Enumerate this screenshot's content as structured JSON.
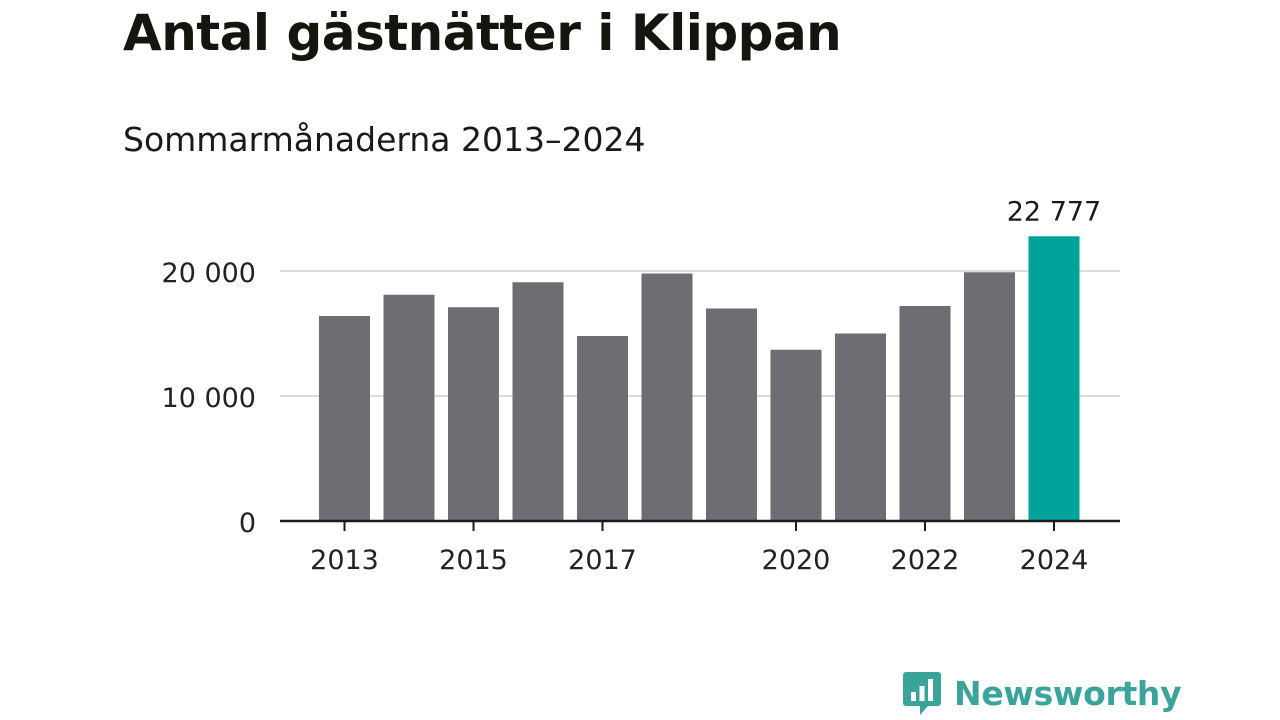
{
  "chart_data": {
    "type": "bar",
    "title": "Antal gästnätter i Klippan",
    "subtitle": "Sommarmånaderna 2013–2024",
    "categories": [
      "2013",
      "2014",
      "2015",
      "2016",
      "2017",
      "2018",
      "2019",
      "2020",
      "2021",
      "2022",
      "2023",
      "2024"
    ],
    "values": [
      16400,
      18100,
      17100,
      19100,
      14800,
      19800,
      17000,
      13700,
      15000,
      17200,
      19900,
      22777
    ],
    "ylim": [
      0,
      24000
    ],
    "yticks": [
      {
        "value": 0,
        "label": "0"
      },
      {
        "value": 10000,
        "label": "10 000"
      },
      {
        "value": 20000,
        "label": "20 000"
      }
    ],
    "xtick_labels": {
      "2013": "2013",
      "2015": "2015",
      "2017": "2017",
      "2020": "2020",
      "2022": "2022",
      "2024": "2024"
    },
    "highlight": {
      "category": "2024",
      "label": "22 777"
    },
    "grid": true,
    "colors": {
      "bar": "#6e6d73",
      "highlight": "#00a39a",
      "grid": "#dcdcdc",
      "axis": "#1a1a1a"
    }
  },
  "brand": {
    "name": "Newsworthy",
    "icon": "bar-chart-speech-bubble-icon",
    "color": "#3aa39a"
  }
}
